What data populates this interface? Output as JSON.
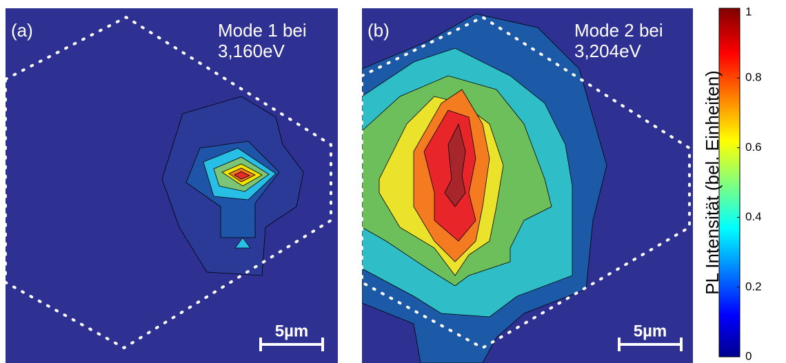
{
  "chart_data": {
    "type": "contour",
    "panels": [
      {
        "label": "(a)",
        "title_lines": [
          "Mode 1 bei",
          "3,160eV"
        ],
        "scale_bar": "5µm",
        "levels": [
          0.05,
          0.15,
          0.25,
          0.4,
          0.5,
          0.6,
          0.7,
          0.85
        ],
        "colors": [
          "#2e3192",
          "#2b3a97",
          "#1f55a8",
          "#27bfe6",
          "#7cc576",
          "#f2e500",
          "#f47b20",
          "#e52a2a"
        ]
      },
      {
        "label": "(b)",
        "title_lines": [
          "Mode 2 bei",
          "3,204eV"
        ],
        "scale_bar": "5µm",
        "levels": [
          0.05,
          0.15,
          0.3,
          0.45,
          0.6,
          0.7,
          0.8,
          0.9
        ],
        "colors": [
          "#2e3192",
          "#1c5aa8",
          "#2fbdc8",
          "#6cbf5a",
          "#ebe22b",
          "#f47b20",
          "#e8262a",
          "#a6262b"
        ]
      }
    ],
    "colorbar": {
      "label": "PL Intensität (bel. Einheiten)",
      "ylim": [
        0,
        1
      ],
      "yticks": [
        0,
        0.2,
        0.4,
        0.6,
        0.8,
        1
      ]
    }
  }
}
